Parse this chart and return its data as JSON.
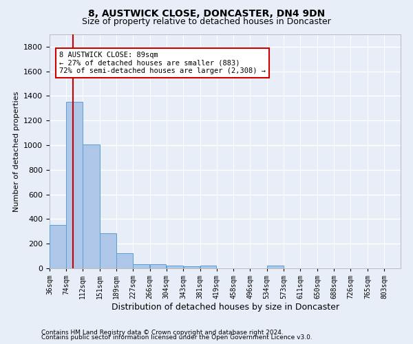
{
  "title1": "8, AUSTWICK CLOSE, DONCASTER, DN4 9DN",
  "title2": "Size of property relative to detached houses in Doncaster",
  "xlabel": "Distribution of detached houses by size in Doncaster",
  "ylabel": "Number of detached properties",
  "bins": [
    36,
    74,
    112,
    151,
    189,
    227,
    266,
    304,
    343,
    381,
    419,
    458,
    496,
    534,
    573,
    611,
    650,
    688,
    726,
    765,
    803
  ],
  "values": [
    350,
    1350,
    1005,
    283,
    122,
    36,
    33,
    22,
    17,
    20,
    0,
    0,
    0,
    20,
    0,
    0,
    0,
    0,
    0,
    0
  ],
  "bar_color": "#aec6e8",
  "bar_edge_color": "#5a9fd4",
  "red_line_x": 89,
  "annotation_line1": "8 AUSTWICK CLOSE: 89sqm",
  "annotation_line2": "← 27% of detached houses are smaller (883)",
  "annotation_line3": "72% of semi-detached houses are larger (2,308) →",
  "annotation_box_color": "#ffffff",
  "annotation_box_edge_color": "#cc0000",
  "footer1": "Contains HM Land Registry data © Crown copyright and database right 2024.",
  "footer2": "Contains public sector information licensed under the Open Government Licence v3.0.",
  "ylim": [
    0,
    1900
  ],
  "yticks": [
    0,
    200,
    400,
    600,
    800,
    1000,
    1200,
    1400,
    1600,
    1800
  ],
  "background_color": "#e8eef7",
  "grid_color": "#ffffff"
}
